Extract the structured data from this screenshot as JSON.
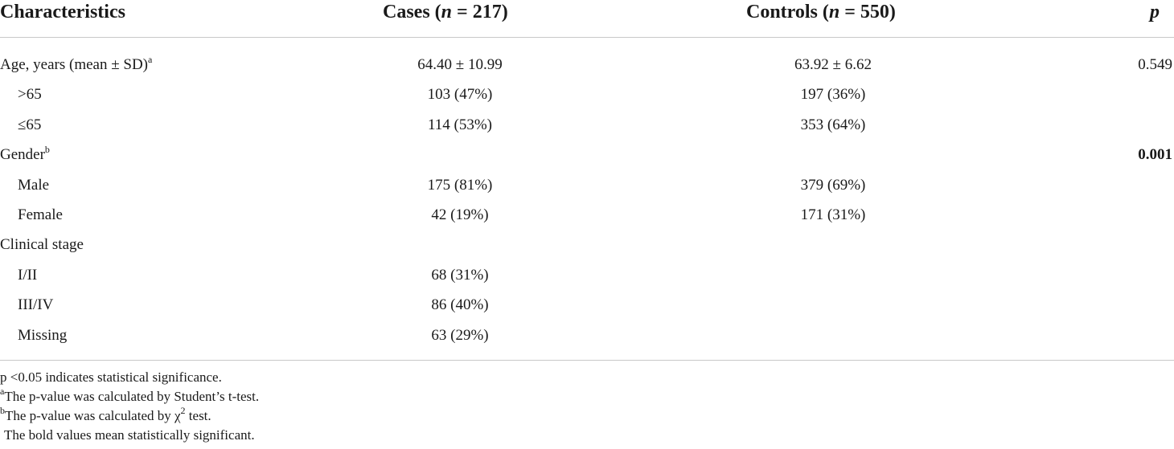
{
  "table": {
    "headers": {
      "characteristics": "Characteristics",
      "cases_prefix": "Cases (",
      "cases_n_var": "n",
      "cases_n_suffix": " = 217)",
      "controls_prefix": "Controls (",
      "controls_n_var": "n",
      "controls_n_suffix": " = 550)",
      "p": "p"
    },
    "rows": [
      {
        "label": "Age, years (mean ± SD)",
        "sup": "a",
        "cases": "64.40 ± 10.99",
        "controls": "63.92 ± 6.62",
        "p": "0.549"
      },
      {
        "label": ">65",
        "sup": "",
        "cases": "103 (47%)",
        "controls": "197 (36%)",
        "p": ""
      },
      {
        "label": "≤65",
        "sup": "",
        "cases": "114 (53%)",
        "controls": "353 (64%)",
        "p": ""
      },
      {
        "label": "Gender",
        "sup": "b",
        "cases": "",
        "controls": "",
        "p": "0.001"
      },
      {
        "label": "Male",
        "sup": "",
        "cases": "175 (81%)",
        "controls": "379 (69%)",
        "p": ""
      },
      {
        "label": "Female",
        "sup": "",
        "cases": "42 (19%)",
        "controls": "171 (31%)",
        "p": ""
      },
      {
        "label": "Clinical stage",
        "sup": "",
        "cases": "",
        "controls": "",
        "p": ""
      },
      {
        "label": "I/II",
        "sup": "",
        "cases": "68 (31%)",
        "controls": "",
        "p": ""
      },
      {
        "label": "III/IV",
        "sup": "",
        "cases": "86 (40%)",
        "controls": "",
        "p": ""
      },
      {
        "label": "Missing",
        "sup": "",
        "cases": "63 (29%)",
        "controls": "",
        "p": ""
      }
    ]
  },
  "footnotes": {
    "significance": "p <0.05 indicates statistical significance.",
    "a_mark": "a",
    "a_text": "The p-value was calculated by Student’s t-test.",
    "b_mark": "b",
    "b_text_before": "The p-value was calculated by χ",
    "b_text_sup": "2",
    "b_text_after": " test.",
    "bold_note": "The bold values mean statistically significant."
  }
}
